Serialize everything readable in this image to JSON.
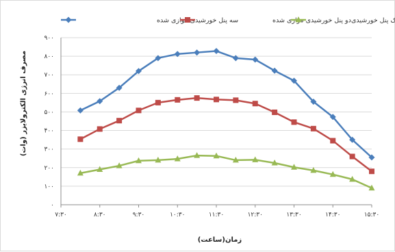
{
  "chart_data": {
    "type": "line",
    "xlabel": "زمان(ساعت)",
    "ylabel": "مصرف انرژی الکترولایزر (وات)",
    "x_tick_labels": [
      "۷:۳۰",
      "۸:۳۰",
      "۹:۳۰",
      "۱۰:۳۰",
      "۱۱:۳۰",
      "۱۲:۳۰",
      "۱۳:۳۰",
      "۱۴:۳۰",
      "۱۵:۳۰"
    ],
    "y_tick_labels": [
      "۰",
      "۱۰۰",
      "۲۰۰",
      "۳۰۰",
      "۴۰۰",
      "۵۰۰",
      "۶۰۰",
      "۷۰۰",
      "۸۰۰",
      "۹۰۰"
    ],
    "xlim": [
      "7:30",
      "15:30"
    ],
    "ylim": [
      0,
      900
    ],
    "grid": "horizontal",
    "legend_position": "top",
    "x": [
      "8:00",
      "8:30",
      "9:00",
      "9:30",
      "10:00",
      "10:30",
      "11:00",
      "11:30",
      "12:00",
      "12:30",
      "13:00",
      "13:30",
      "14:00",
      "14:30",
      "15:00",
      "15:30"
    ],
    "series": [
      {
        "name": "سه پنل خورشیدی موازی شده",
        "color": "#4a7ebb",
        "marker": "diamond",
        "values": [
          508,
          558,
          630,
          720,
          790,
          812,
          820,
          828,
          790,
          782,
          722,
          668,
          555,
          473,
          350,
          255
        ]
      },
      {
        "name": "دو پنل خورشیدی موازی شده",
        "color": "#be4b48",
        "marker": "square",
        "values": [
          353,
          408,
          453,
          508,
          550,
          565,
          575,
          567,
          563,
          545,
          498,
          445,
          410,
          345,
          260,
          180
        ]
      },
      {
        "name": "یک پنل خورشیدی",
        "color": "#98b954",
        "marker": "triangle",
        "values": [
          170,
          190,
          210,
          237,
          240,
          247,
          265,
          263,
          240,
          242,
          225,
          202,
          185,
          163,
          137,
          90
        ]
      }
    ]
  }
}
